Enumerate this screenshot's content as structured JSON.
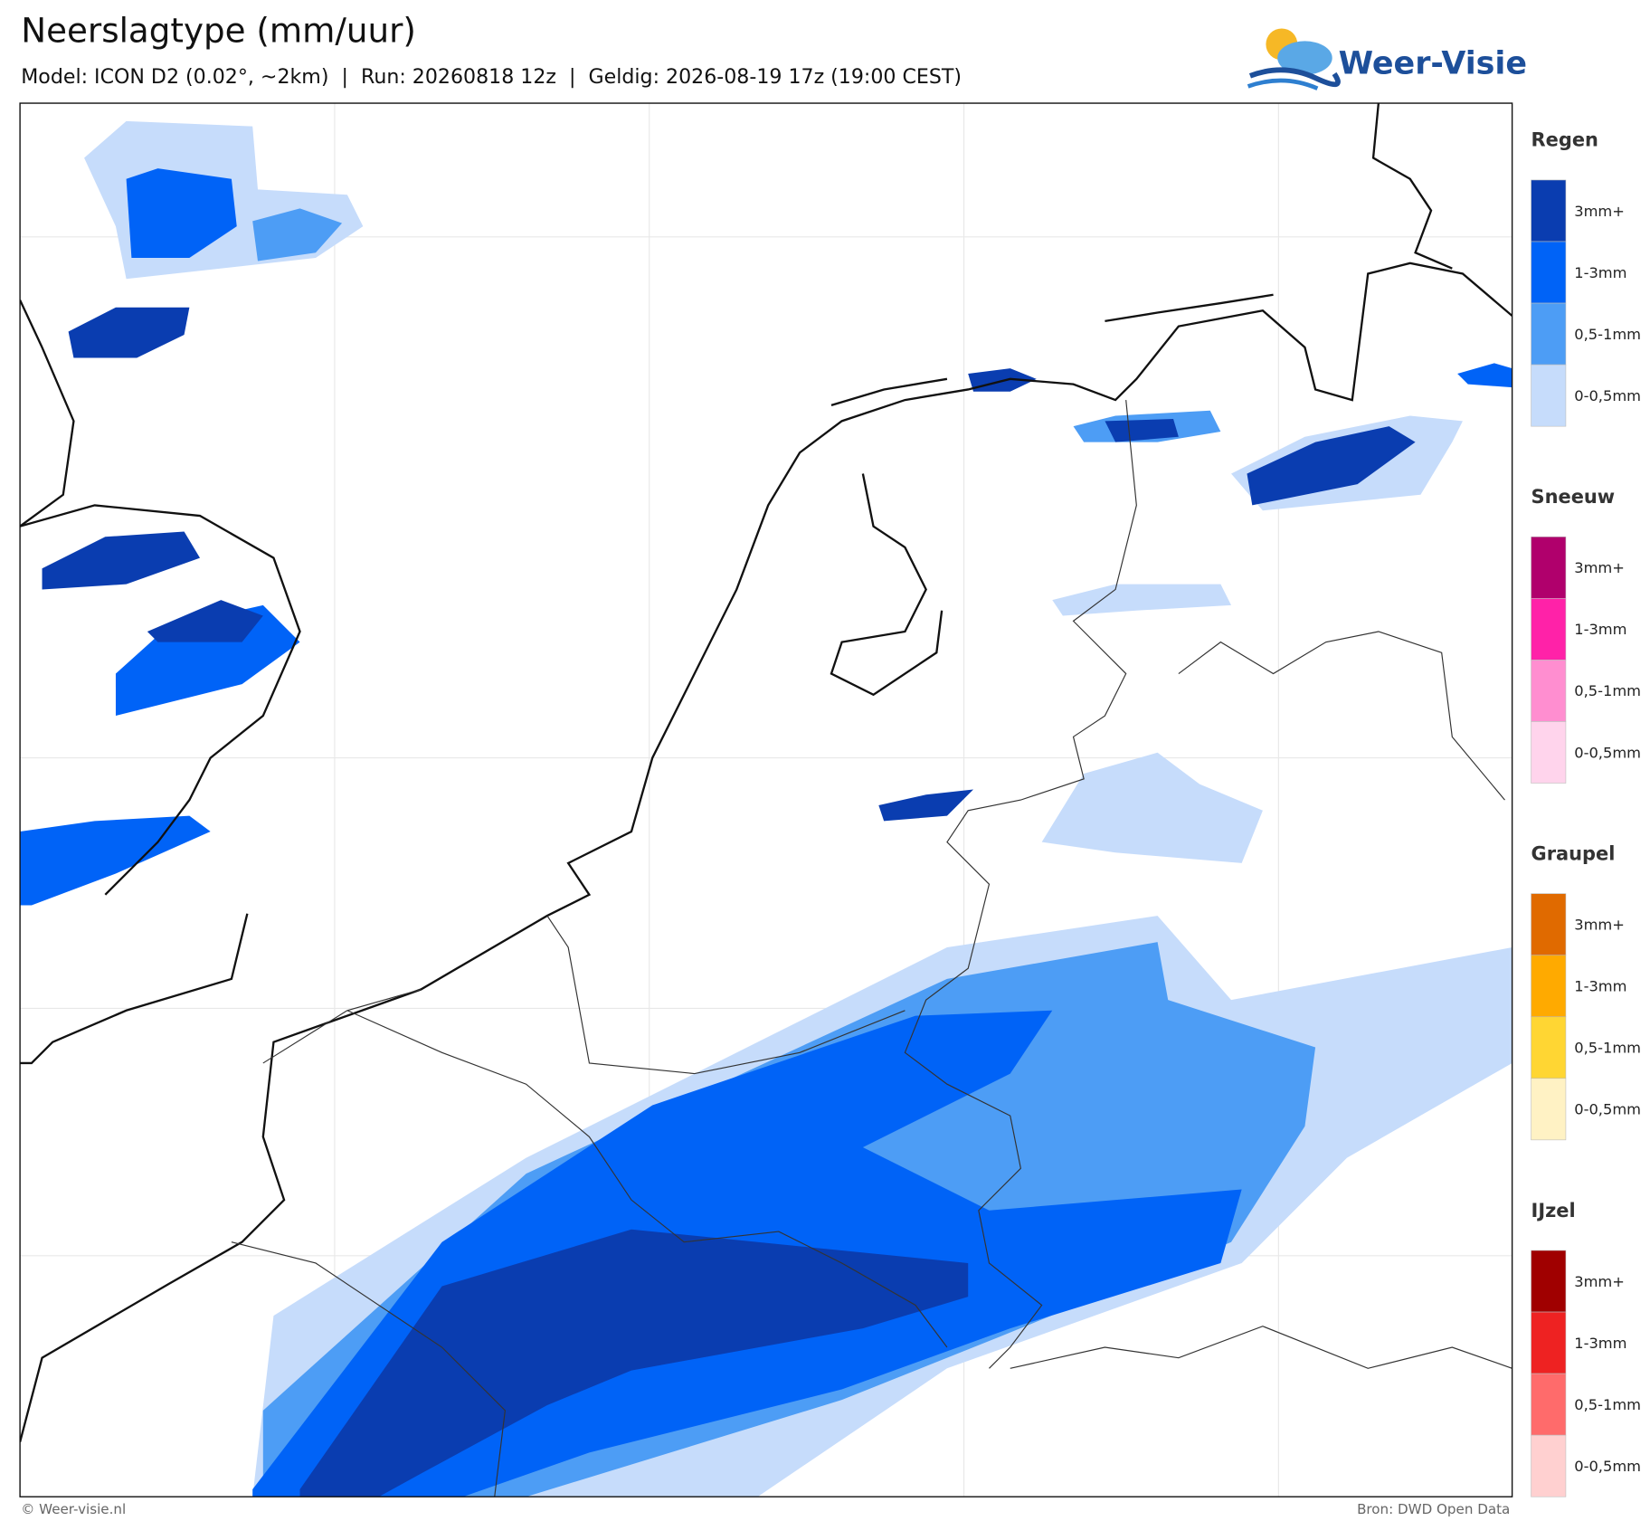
{
  "header": {
    "title": "Neerslagtype (mm/uur)",
    "subtitle": "Model: ICON D2 (0.02°, ~2km)  |  Run: 20260818 12z  |  Geldig: 2026-08-19 17z (19:00 CEST)"
  },
  "logo": {
    "text": "Weer-Visie"
  },
  "legend": {
    "groups": [
      {
        "title": "Regen",
        "items": [
          {
            "label": "3mm+",
            "color": "#0a3db0"
          },
          {
            "label": "1-3mm",
            "color": "#0063f7"
          },
          {
            "label": "0,5-1mm",
            "color": "#4d9df5"
          },
          {
            "label": "0-0,5mm",
            "color": "#c6dcfb"
          }
        ]
      },
      {
        "title": "Sneeuw",
        "items": [
          {
            "label": "3mm+",
            "color": "#b0006c"
          },
          {
            "label": "1-3mm",
            "color": "#ff22a8"
          },
          {
            "label": "0,5-1mm",
            "color": "#ff8ed0"
          },
          {
            "label": "0-0,5mm",
            "color": "#ffd4ec"
          }
        ]
      },
      {
        "title": "Graupel",
        "items": [
          {
            "label": "3mm+",
            "color": "#e06a00"
          },
          {
            "label": "1-3mm",
            "color": "#ffaa00"
          },
          {
            "label": "0,5-1mm",
            "color": "#ffd633"
          },
          {
            "label": "0-0,5mm",
            "color": "#fff2c4"
          }
        ]
      },
      {
        "title": "IJzel",
        "items": [
          {
            "label": "3mm+",
            "color": "#a00000"
          },
          {
            "label": "1-3mm",
            "color": "#ee2222"
          },
          {
            "label": "0,5-1mm",
            "color": "#ff6b6b"
          },
          {
            "label": "0-0,5mm",
            "color": "#ffd0d0"
          }
        ]
      }
    ]
  },
  "footer": {
    "left": "© Weer-visie.nl",
    "right": "Bron: DWD Open Data"
  }
}
